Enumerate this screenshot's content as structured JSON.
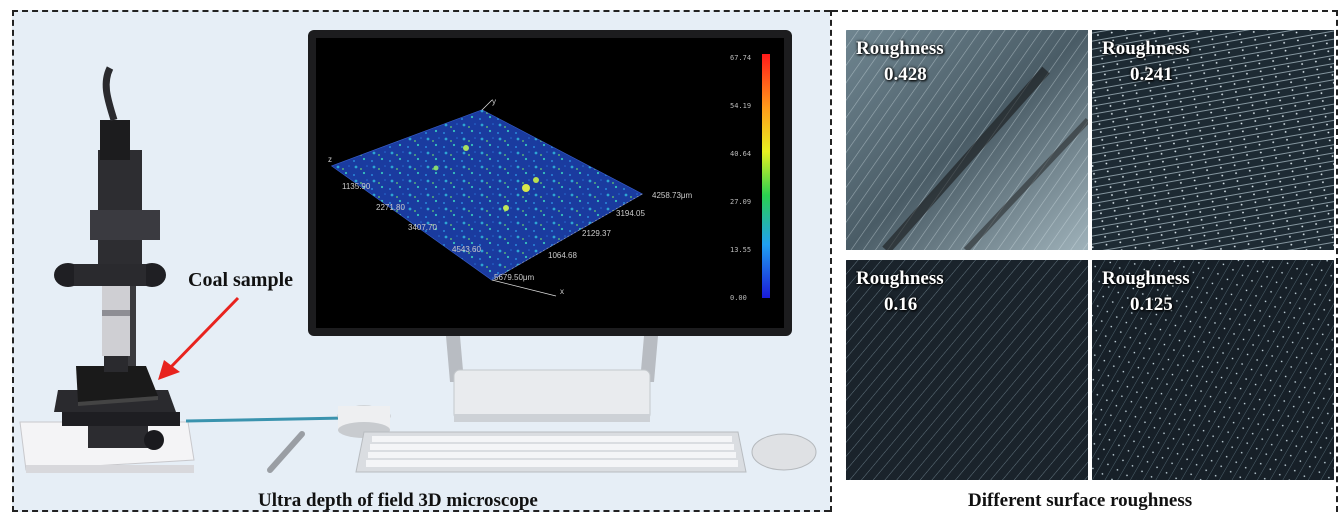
{
  "left_panel": {
    "caption": "Ultra depth of field 3D microscope",
    "coal_label": "Coal sample",
    "screen": {
      "color_scale": [
        "67.74",
        "54.19",
        "40.64",
        "27.09",
        "13.55",
        "0.00"
      ],
      "x_ticks": [
        "1135.90",
        "2271.80",
        "3407.70",
        "4543.60",
        "5679.50μm"
      ],
      "y_ticks": [
        "4258.73μm",
        "3194.05",
        "2129.37",
        "1064.68"
      ],
      "axis_x": "x",
      "axis_y": "y",
      "axis_z": "z"
    }
  },
  "right_panel": {
    "caption": "Different surface roughness",
    "samples": [
      {
        "label": "Roughness",
        "value": "0.428"
      },
      {
        "label": "Roughness",
        "value": "0.241"
      },
      {
        "label": "Roughness",
        "value": "0.16"
      },
      {
        "label": "Roughness",
        "value": "0.125"
      }
    ]
  },
  "colors": {
    "background": "#e6eef6",
    "arrow": "#e8231e",
    "cable": "#3a93ae",
    "surface": "#1c3fa8"
  }
}
